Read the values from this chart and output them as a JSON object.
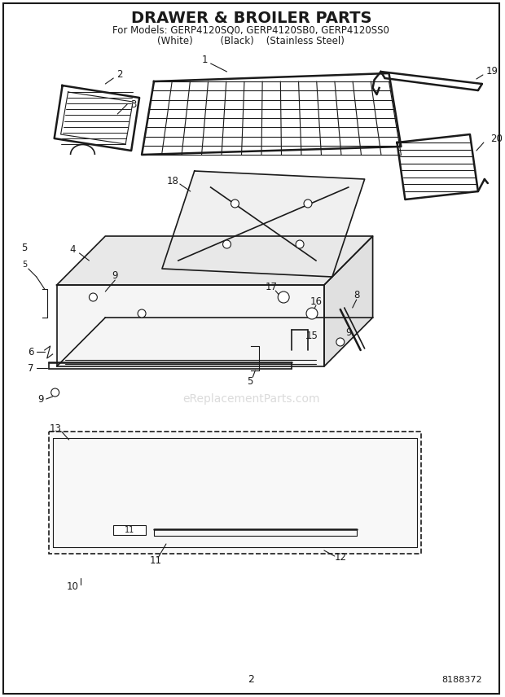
{
  "title": "DRAWER & BROILER PARTS",
  "subtitle1": "For Models: GERP4120SQ0, GERP4120SB0, GERP4120SS0",
  "subtitle2": "(White)         (Black)    (Stainless Steel)",
  "page_number": "2",
  "part_number": "8188372",
  "watermark": "eReplacementParts.com",
  "background_color": "#ffffff",
  "line_color": "#1a1a1a",
  "text_color": "#1a1a1a",
  "watermark_color": "#cccccc",
  "title_fontsize": 14,
  "subtitle_fontsize": 8,
  "label_fontsize": 8.5
}
